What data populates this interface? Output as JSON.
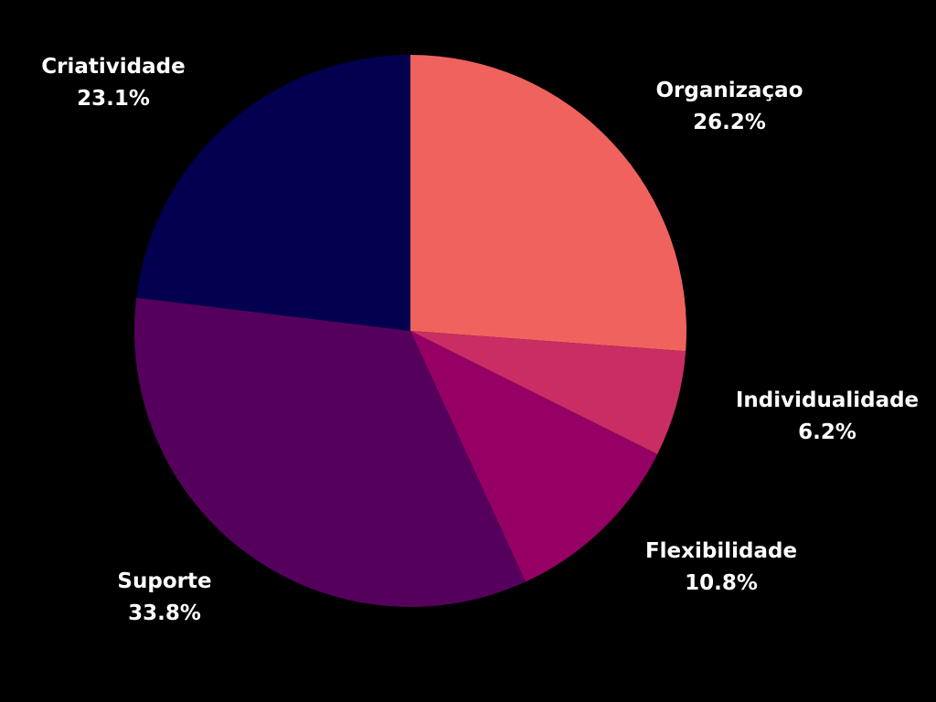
{
  "chart_data": {
    "type": "pie",
    "title": "",
    "background": "#000000",
    "label_color": "#ffffff",
    "start": "12 o'clock",
    "direction": "clockwise",
    "slices": [
      {
        "label": "Organizaçao",
        "value": 26.2,
        "display": "26.2%",
        "color": "#f0625e"
      },
      {
        "label": "Individualidade",
        "value": 6.2,
        "display": "6.2%",
        "color": "#c92d63"
      },
      {
        "label": "Flexibilidade",
        "value": 10.8,
        "display": "10.8%",
        "color": "#960064"
      },
      {
        "label": "Suporte",
        "value": 33.8,
        "display": "33.8%",
        "color": "#56005d"
      },
      {
        "label": "Criatividade",
        "value": 23.1,
        "display": "23.1%",
        "color": "#02004f"
      }
    ]
  }
}
